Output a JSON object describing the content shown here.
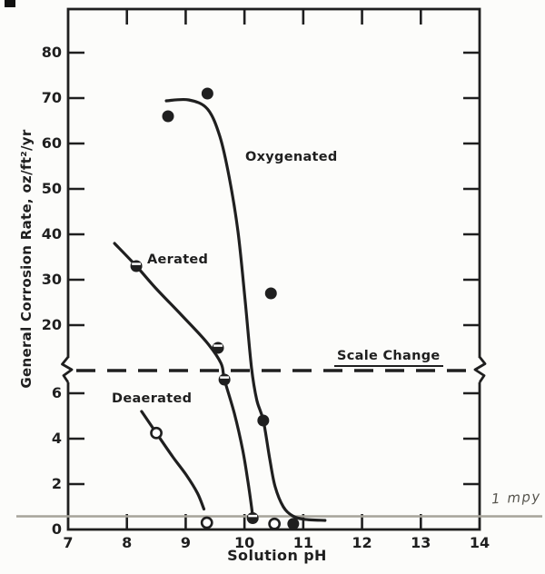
{
  "chart_data": {
    "type": "line",
    "title": "",
    "xlabel": "Solution pH",
    "ylabel": "General Corrosion Rate, oz/ft²/yr",
    "x_ticks": [
      7,
      8,
      9,
      10,
      11,
      12,
      13,
      14
    ],
    "x_range": [
      7,
      14
    ],
    "y_ticks_upper_scale": [
      80,
      70,
      60,
      50,
      40,
      30,
      20
    ],
    "y_ticks_lower_scale": [
      6,
      4,
      2,
      0
    ],
    "y_axis_note": "broken axis: fine scale 0-6 below break, coarse scale 20-80 above break",
    "scale_change": {
      "label": "Scale Change"
    },
    "reference_line": {
      "label": "1 mpy",
      "value_oz_ft2_yr": 0.6
    },
    "series": [
      {
        "name": "Oxygenated",
        "marker": "filled-circle",
        "points": [
          [
            8.7,
            66
          ],
          [
            9.37,
            71
          ],
          [
            10.45,
            27
          ],
          [
            10.32,
            4.8
          ],
          [
            10.83,
            0.25
          ]
        ],
        "curve": [
          [
            8.67,
            69.4
          ],
          [
            9.05,
            69.6
          ],
          [
            9.37,
            67.6
          ],
          [
            9.58,
            61.6
          ],
          [
            9.74,
            52.6
          ],
          [
            9.89,
            40.6
          ],
          [
            10.01,
            25.6
          ],
          [
            10.12,
            10.6
          ],
          [
            10.21,
            5.7
          ],
          [
            10.32,
            4.8
          ],
          [
            10.43,
            3.1
          ],
          [
            10.52,
            1.9
          ],
          [
            10.66,
            1.0
          ],
          [
            10.82,
            0.6
          ],
          [
            11.02,
            0.45
          ],
          [
            11.37,
            0.4
          ]
        ]
      },
      {
        "name": "Aerated",
        "marker": "half-filled-circle",
        "points": [
          [
            8.16,
            33
          ],
          [
            9.55,
            15
          ],
          [
            9.66,
            6.6
          ],
          [
            10.14,
            0.5
          ]
        ],
        "curve": [
          [
            7.79,
            38
          ],
          [
            8.16,
            33
          ],
          [
            8.5,
            28
          ],
          [
            8.93,
            22.2
          ],
          [
            9.36,
            16.2
          ],
          [
            9.6,
            11.6
          ],
          [
            9.66,
            6.6
          ],
          [
            9.83,
            5.1
          ],
          [
            9.97,
            3.5
          ],
          [
            10.06,
            2.1
          ],
          [
            10.12,
            1.0
          ],
          [
            10.14,
            0.55
          ]
        ]
      },
      {
        "name": "Deaerated",
        "marker": "open-circle",
        "points": [
          [
            8.5,
            4.25
          ],
          [
            9.36,
            0.3
          ],
          [
            10.51,
            0.25
          ]
        ],
        "curve": [
          [
            8.25,
            5.2
          ],
          [
            8.5,
            4.25
          ],
          [
            8.78,
            3.2
          ],
          [
            9.01,
            2.4
          ],
          [
            9.2,
            1.6
          ],
          [
            9.31,
            0.9
          ]
        ]
      }
    ],
    "colors": {
      "ink": "#1f1f1f",
      "reference_gray": "#a6a39a",
      "pencil": "#57554e",
      "background": "#fcfcfa"
    }
  }
}
